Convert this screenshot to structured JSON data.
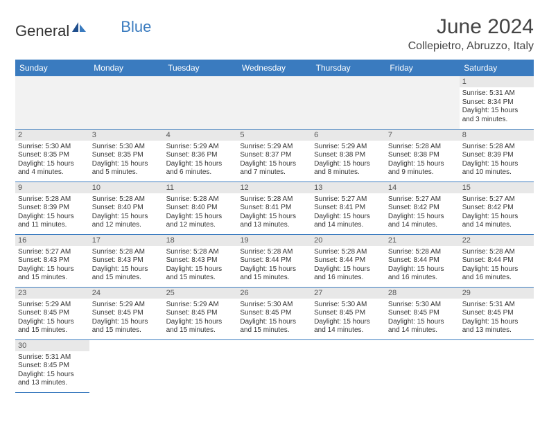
{
  "brand": {
    "part1": "General",
    "part2": "Blue"
  },
  "title": "June 2024",
  "location": "Collepietro, Abruzzo, Italy",
  "colors": {
    "header_bg": "#3a7bbf",
    "header_text": "#ffffff",
    "daynum_bg": "#e8e8e8",
    "border": "#3a7bbf",
    "text": "#333333",
    "empty_bg": "#f2f2f2"
  },
  "day_names": [
    "Sunday",
    "Monday",
    "Tuesday",
    "Wednesday",
    "Thursday",
    "Friday",
    "Saturday"
  ],
  "weeks": [
    [
      null,
      null,
      null,
      null,
      null,
      null,
      {
        "n": "1",
        "sr": "Sunrise: 5:31 AM",
        "ss": "Sunset: 8:34 PM",
        "dl1": "Daylight: 15 hours",
        "dl2": "and 3 minutes."
      }
    ],
    [
      {
        "n": "2",
        "sr": "Sunrise: 5:30 AM",
        "ss": "Sunset: 8:35 PM",
        "dl1": "Daylight: 15 hours",
        "dl2": "and 4 minutes."
      },
      {
        "n": "3",
        "sr": "Sunrise: 5:30 AM",
        "ss": "Sunset: 8:35 PM",
        "dl1": "Daylight: 15 hours",
        "dl2": "and 5 minutes."
      },
      {
        "n": "4",
        "sr": "Sunrise: 5:29 AM",
        "ss": "Sunset: 8:36 PM",
        "dl1": "Daylight: 15 hours",
        "dl2": "and 6 minutes."
      },
      {
        "n": "5",
        "sr": "Sunrise: 5:29 AM",
        "ss": "Sunset: 8:37 PM",
        "dl1": "Daylight: 15 hours",
        "dl2": "and 7 minutes."
      },
      {
        "n": "6",
        "sr": "Sunrise: 5:29 AM",
        "ss": "Sunset: 8:38 PM",
        "dl1": "Daylight: 15 hours",
        "dl2": "and 8 minutes."
      },
      {
        "n": "7",
        "sr": "Sunrise: 5:28 AM",
        "ss": "Sunset: 8:38 PM",
        "dl1": "Daylight: 15 hours",
        "dl2": "and 9 minutes."
      },
      {
        "n": "8",
        "sr": "Sunrise: 5:28 AM",
        "ss": "Sunset: 8:39 PM",
        "dl1": "Daylight: 15 hours",
        "dl2": "and 10 minutes."
      }
    ],
    [
      {
        "n": "9",
        "sr": "Sunrise: 5:28 AM",
        "ss": "Sunset: 8:39 PM",
        "dl1": "Daylight: 15 hours",
        "dl2": "and 11 minutes."
      },
      {
        "n": "10",
        "sr": "Sunrise: 5:28 AM",
        "ss": "Sunset: 8:40 PM",
        "dl1": "Daylight: 15 hours",
        "dl2": "and 12 minutes."
      },
      {
        "n": "11",
        "sr": "Sunrise: 5:28 AM",
        "ss": "Sunset: 8:40 PM",
        "dl1": "Daylight: 15 hours",
        "dl2": "and 12 minutes."
      },
      {
        "n": "12",
        "sr": "Sunrise: 5:28 AM",
        "ss": "Sunset: 8:41 PM",
        "dl1": "Daylight: 15 hours",
        "dl2": "and 13 minutes."
      },
      {
        "n": "13",
        "sr": "Sunrise: 5:27 AM",
        "ss": "Sunset: 8:41 PM",
        "dl1": "Daylight: 15 hours",
        "dl2": "and 14 minutes."
      },
      {
        "n": "14",
        "sr": "Sunrise: 5:27 AM",
        "ss": "Sunset: 8:42 PM",
        "dl1": "Daylight: 15 hours",
        "dl2": "and 14 minutes."
      },
      {
        "n": "15",
        "sr": "Sunrise: 5:27 AM",
        "ss": "Sunset: 8:42 PM",
        "dl1": "Daylight: 15 hours",
        "dl2": "and 14 minutes."
      }
    ],
    [
      {
        "n": "16",
        "sr": "Sunrise: 5:27 AM",
        "ss": "Sunset: 8:43 PM",
        "dl1": "Daylight: 15 hours",
        "dl2": "and 15 minutes."
      },
      {
        "n": "17",
        "sr": "Sunrise: 5:28 AM",
        "ss": "Sunset: 8:43 PM",
        "dl1": "Daylight: 15 hours",
        "dl2": "and 15 minutes."
      },
      {
        "n": "18",
        "sr": "Sunrise: 5:28 AM",
        "ss": "Sunset: 8:43 PM",
        "dl1": "Daylight: 15 hours",
        "dl2": "and 15 minutes."
      },
      {
        "n": "19",
        "sr": "Sunrise: 5:28 AM",
        "ss": "Sunset: 8:44 PM",
        "dl1": "Daylight: 15 hours",
        "dl2": "and 15 minutes."
      },
      {
        "n": "20",
        "sr": "Sunrise: 5:28 AM",
        "ss": "Sunset: 8:44 PM",
        "dl1": "Daylight: 15 hours",
        "dl2": "and 16 minutes."
      },
      {
        "n": "21",
        "sr": "Sunrise: 5:28 AM",
        "ss": "Sunset: 8:44 PM",
        "dl1": "Daylight: 15 hours",
        "dl2": "and 16 minutes."
      },
      {
        "n": "22",
        "sr": "Sunrise: 5:28 AM",
        "ss": "Sunset: 8:44 PM",
        "dl1": "Daylight: 15 hours",
        "dl2": "and 16 minutes."
      }
    ],
    [
      {
        "n": "23",
        "sr": "Sunrise: 5:29 AM",
        "ss": "Sunset: 8:45 PM",
        "dl1": "Daylight: 15 hours",
        "dl2": "and 15 minutes."
      },
      {
        "n": "24",
        "sr": "Sunrise: 5:29 AM",
        "ss": "Sunset: 8:45 PM",
        "dl1": "Daylight: 15 hours",
        "dl2": "and 15 minutes."
      },
      {
        "n": "25",
        "sr": "Sunrise: 5:29 AM",
        "ss": "Sunset: 8:45 PM",
        "dl1": "Daylight: 15 hours",
        "dl2": "and 15 minutes."
      },
      {
        "n": "26",
        "sr": "Sunrise: 5:30 AM",
        "ss": "Sunset: 8:45 PM",
        "dl1": "Daylight: 15 hours",
        "dl2": "and 15 minutes."
      },
      {
        "n": "27",
        "sr": "Sunrise: 5:30 AM",
        "ss": "Sunset: 8:45 PM",
        "dl1": "Daylight: 15 hours",
        "dl2": "and 14 minutes."
      },
      {
        "n": "28",
        "sr": "Sunrise: 5:30 AM",
        "ss": "Sunset: 8:45 PM",
        "dl1": "Daylight: 15 hours",
        "dl2": "and 14 minutes."
      },
      {
        "n": "29",
        "sr": "Sunrise: 5:31 AM",
        "ss": "Sunset: 8:45 PM",
        "dl1": "Daylight: 15 hours",
        "dl2": "and 13 minutes."
      }
    ],
    [
      {
        "n": "30",
        "sr": "Sunrise: 5:31 AM",
        "ss": "Sunset: 8:45 PM",
        "dl1": "Daylight: 15 hours",
        "dl2": "and 13 minutes."
      },
      null,
      null,
      null,
      null,
      null,
      null
    ]
  ]
}
